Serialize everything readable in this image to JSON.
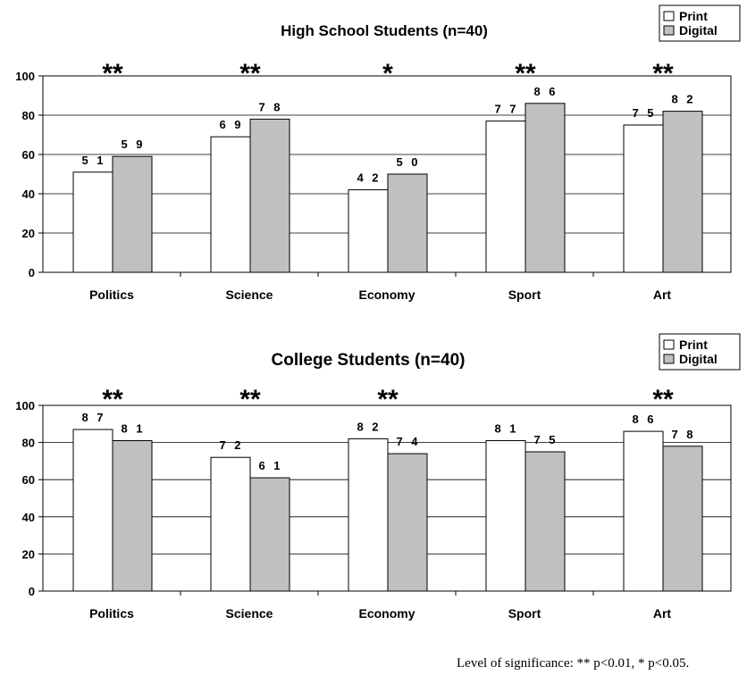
{
  "chart_data": [
    {
      "type": "bar",
      "title": "High School Students (n=40)",
      "categories": [
        "Politics",
        "Science",
        "Economy",
        "Sport",
        "Art"
      ],
      "series": [
        {
          "name": "Print",
          "values": [
            51,
            69,
            42,
            77,
            75
          ],
          "color": "#ffffff"
        },
        {
          "name": "Digital",
          "values": [
            59,
            78,
            50,
            86,
            82
          ],
          "color": "#c0c0c0"
        }
      ],
      "data_labels": [
        [
          "5 1",
          "6 9",
          "4 2",
          "7 7",
          "7 5"
        ],
        [
          "5 9",
          "7 8",
          "5 0",
          "8 6",
          "8 2"
        ]
      ],
      "significance": [
        "**",
        "**",
        "*",
        "**",
        "**"
      ],
      "ylim": [
        0,
        100
      ],
      "yticks": [
        0,
        20,
        40,
        60,
        80,
        100
      ],
      "xlabel": "",
      "ylabel": "",
      "grid": true,
      "legend": "top-right"
    },
    {
      "type": "bar",
      "title": "College Students (n=40)",
      "categories": [
        "Politics",
        "Science",
        "Economy",
        "Sport",
        "Art"
      ],
      "series": [
        {
          "name": "Print",
          "values": [
            87,
            72,
            82,
            81,
            86
          ],
          "color": "#ffffff"
        },
        {
          "name": "Digital",
          "values": [
            81,
            61,
            74,
            75,
            78
          ],
          "color": "#c0c0c0"
        }
      ],
      "data_labels": [
        [
          "8 7",
          "7 2",
          "8 2",
          "8 1",
          "8 6"
        ],
        [
          "8 1",
          "6 1",
          "7 4",
          "7 5",
          "7 8"
        ]
      ],
      "significance": [
        "**",
        "**",
        "**",
        "",
        "**"
      ],
      "ylim": [
        0,
        100
      ],
      "yticks": [
        0,
        20,
        40,
        60,
        80,
        100
      ],
      "xlabel": "",
      "ylabel": "",
      "grid": true,
      "legend": "top-right"
    }
  ],
  "footnote": "Level of significance: ** p<0.01, * p<0.05."
}
